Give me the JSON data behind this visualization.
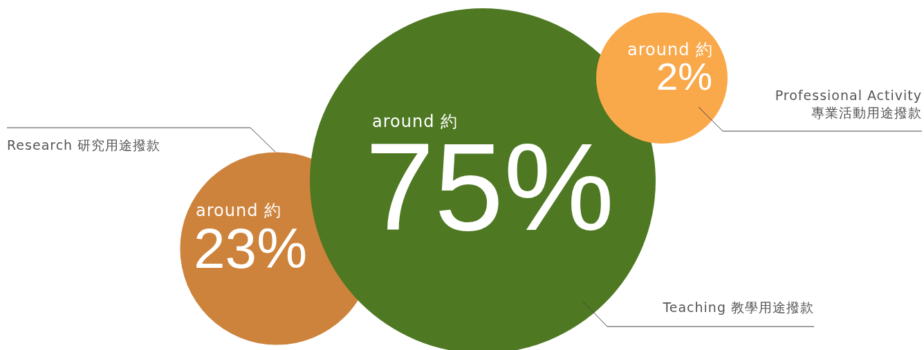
{
  "chart_data": {
    "type": "other",
    "categories": [
      "Research 研究用途撥款",
      "Teaching 教學用途撥款",
      "Professional Activity 專業活動用途撥款"
    ],
    "values": [
      23,
      75,
      2
    ],
    "colors": [
      "#cd833b",
      "#4e7822",
      "#f9a84a"
    ],
    "value_labels": [
      "23%",
      "75%",
      "2%"
    ],
    "annotations": [
      "around 約",
      "around 約",
      "around 約"
    ]
  }
}
